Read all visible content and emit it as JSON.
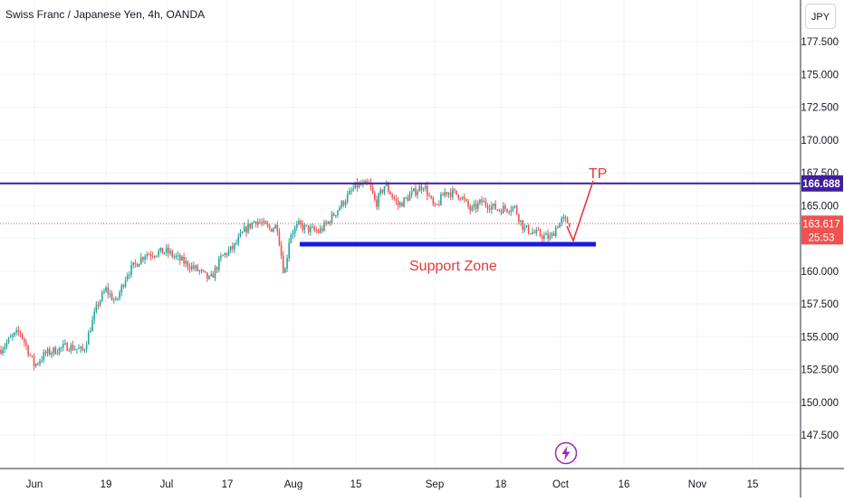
{
  "header": {
    "title": "Swiss Franc / Japanese Yen, 4h, OANDA",
    "currency_button": "JPY"
  },
  "colors": {
    "up": "#26a69a",
    "down": "#ef5350",
    "resistance_line": "#3f1f9e",
    "support_line": "#1a1ae6",
    "annotation": "#e53935",
    "price_dotted": "#ef5350",
    "grid": "#f0f3fa"
  },
  "chart_data": {
    "type": "candlestick",
    "symbol": "CHFJPY",
    "timeframe": "4h",
    "ylim": [
      146,
      178.5
    ],
    "y_ticks": [
      "177.500",
      "175.000",
      "172.500",
      "170.000",
      "167.500",
      "165.000",
      "162.500",
      "160.000",
      "157.500",
      "155.000",
      "152.500",
      "150.000",
      "147.500"
    ],
    "x_ticks": [
      "Jun",
      "19",
      "Jul",
      "17",
      "Aug",
      "15",
      "Sep",
      "18",
      "Oct",
      "16",
      "Nov",
      "15"
    ],
    "series": [
      {
        "x": "Jun",
        "close": 154.5
      },
      {
        "x": "19",
        "close": 158.0
      },
      {
        "x": "Jul",
        "close": 161.3
      },
      {
        "x": "17",
        "close": 162.3
      },
      {
        "x": "Aug",
        "close": 163.0
      },
      {
        "x": "15",
        "close": 166.2
      },
      {
        "x": "Sep",
        "close": 165.4
      },
      {
        "x": "18",
        "close": 164.9
      },
      {
        "x": "Oct",
        "close": 163.6
      }
    ],
    "resistance_label": "166.688",
    "last_price_label": "163.617",
    "countdown_label": "25:53",
    "annotations": {
      "support_text": "Support Zone",
      "target_text": "TP"
    }
  }
}
